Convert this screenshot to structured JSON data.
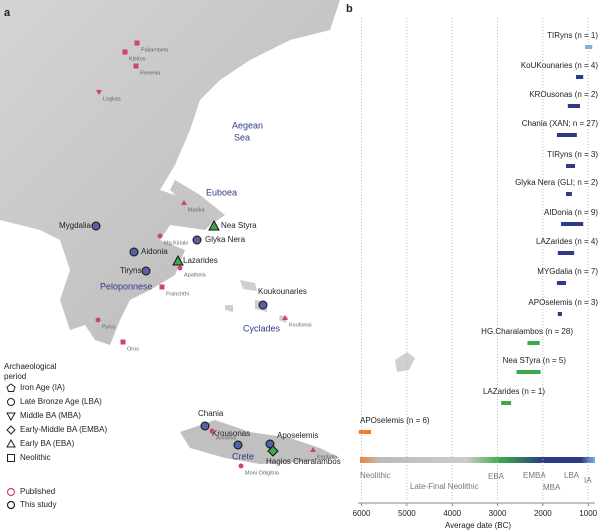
{
  "panel_a": {
    "label": "a",
    "sites": [
      "Mygdalia",
      "Aidonia",
      "Tiryns",
      "Glyka Nera",
      "Koukounaries",
      "Chania",
      "Krousonas",
      "Aposelemis",
      "Nea Styra",
      "Lazarides",
      "Hagios Charalambos"
    ],
    "published_sites": [
      "Kleitos",
      "Paliambela",
      "Revenia",
      "Logkas",
      "Marika",
      "Mg.Kiriaki",
      "Apatheia",
      "Franchthi",
      "Pylos",
      "Oros",
      "Koufonisi",
      "Armenoi",
      "Kephala",
      "Moni Odigitria"
    ],
    "regions": [
      "Aegean",
      "Sea",
      "Euboea",
      "Peloponnese",
      "Cyclades",
      "Crete"
    ],
    "legend": {
      "title": [
        "Archaeological",
        "period"
      ],
      "periods": [
        "Iron Age (IA)",
        "Late Bronze Age (LBA)",
        "Middle BA (MBA)",
        "Early-Middle BA (EMBA)",
        "Early BA (EBA)",
        "Neolithic"
      ],
      "sources": [
        "Published",
        "This study"
      ]
    }
  },
  "chart_data": {
    "type": "range",
    "panel_label": "b",
    "categories": [
      "TIRyns (n = 1)",
      "KoUKounaries (n = 4)",
      "KROusonas (n = 2)",
      "Chania (XAN; n = 27)",
      "TIRyns (n = 3)",
      "Glyka Nera (GLI; n = 2)",
      "AIDonia (n = 9)",
      "LAZarides (n = 4)",
      "MYGdalia (n = 7)",
      "APOselemis (n = 3)",
      "HG.Charalambos (n = 28)",
      "Nea STyra (n = 5)",
      "LAZarides (n = 1)",
      "APOselemis (n = 6)"
    ],
    "values": [
      [
        1070,
        910
      ],
      [
        1270,
        1110
      ],
      [
        1450,
        1180
      ],
      [
        1690,
        1250
      ],
      [
        1490,
        1290
      ],
      [
        1490,
        1360
      ],
      [
        1600,
        1110
      ],
      [
        1670,
        1310
      ],
      [
        1690,
        1490
      ],
      [
        1670,
        1580
      ],
      [
        2340,
        2070
      ],
      [
        2580,
        2050
      ],
      [
        2920,
        2700
      ],
      [
        6060,
        5790
      ]
    ],
    "colors": [
      "#7fb2e0",
      "#2e3a87",
      "#2e3a87",
      "#2e3a87",
      "#2e3a87",
      "#2e3a87",
      "#2e3a87",
      "#2e3a87",
      "#2e3a87",
      "#2e3a87",
      "#3aaa4a",
      "#3aaa4a",
      "#3aaa4a",
      "#f08030"
    ],
    "xlim": [
      6100,
      850
    ],
    "xticks": [
      6000,
      5000,
      4000,
      3000,
      2000,
      1000
    ],
    "x_label": "Average date (BC)",
    "periods": [
      "Neolithic",
      "Late-Final Neolithic",
      "EBA",
      "EMBA",
      "MBA",
      "LBA",
      "IA"
    ],
    "grid": true
  }
}
